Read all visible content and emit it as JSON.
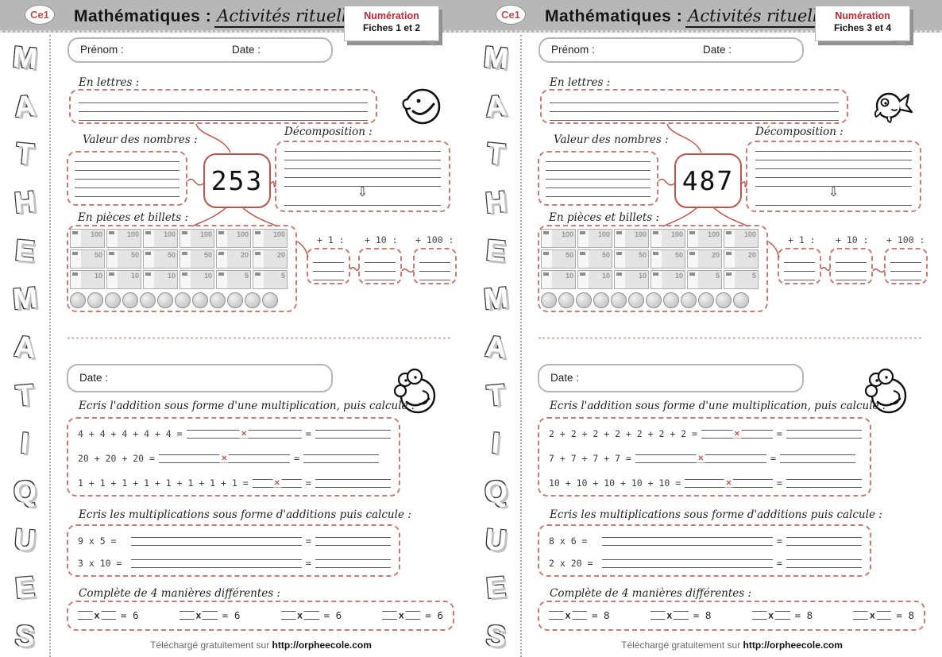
{
  "colors": {
    "band": "#b7b7b7",
    "accent_red": "#c4584e",
    "tag_red": "#c2272d"
  },
  "side_letters": [
    "M",
    "A",
    "T",
    "H",
    "E",
    "M",
    "A",
    "T",
    "I",
    "Q",
    "U",
    "E",
    "S"
  ],
  "symbols": {
    "eq": "=",
    "times": "×",
    "down_arrow": "⇩"
  },
  "money": {
    "bill_rows": [
      [
        "100",
        "100",
        "100",
        "100",
        "100",
        "100"
      ],
      [
        "50",
        "50",
        "50",
        "50",
        "20",
        "20"
      ],
      [
        "10",
        "10",
        "10",
        "10",
        "5",
        "5"
      ]
    ],
    "coin_count": 12
  },
  "footer": {
    "prefix": "Téléchargé gratuitement sur ",
    "url": "http://orpheecole.com"
  },
  "pages": [
    {
      "badge": "Ce1",
      "title_print": "Mathématiques :",
      "title_script": "Activités rituelles",
      "tag_subject": "Numération",
      "tag_fiches": "Fiches 1 et 2",
      "prenom_label": "Prénom :",
      "date_label": "Date :",
      "labels": {
        "en_lettres": "En lettres :",
        "valeur": "Valeur des nombres :",
        "decomposition": "Décomposition :",
        "pieces": "En pièces et billets :"
      },
      "number": "253",
      "plus_labels": [
        "+ 1 :",
        "+ 10 :",
        "+ 100 :"
      ],
      "date2_label": "Date :",
      "instructions": {
        "addition": "Ecris l'addition sous forme d'une multiplication, puis calcule :",
        "multiplication": "Ecris les multiplications sous forme d'additions puis calcule :",
        "complete": "Complète de 4 manières différentes :"
      },
      "addition_rows": [
        "4 + 4 + 4 + 4 + 4 =",
        "20 + 20 + 20 =",
        "1 + 1 + 1 + 1 + 1 + 1 + 1 + 1 ="
      ],
      "multiplication_rows": [
        "9 x 5 =",
        "3 x 10 ="
      ],
      "complete_x": "x",
      "complete_eq": "= 6",
      "mascot_top": "smiley"
    },
    {
      "badge": "Ce1",
      "title_print": "Mathématiques :",
      "title_script": "Activités rituelles",
      "tag_subject": "Numération",
      "tag_fiches": "Fiches 3 et 4",
      "prenom_label": "Prénom :",
      "date_label": "Date :",
      "labels": {
        "en_lettres": "En lettres :",
        "valeur": "Valeur des nombres :",
        "decomposition": "Décomposition :",
        "pieces": "En pièces et billets :"
      },
      "number": "487",
      "plus_labels": [
        "+ 1 :",
        "+ 10 :",
        "+ 100 :"
      ],
      "date2_label": "Date :",
      "instructions": {
        "addition": "Ecris l'addition sous forme d'une multiplication, puis calcule :",
        "multiplication": "Ecris les multiplications sous forme d'additions puis calcule :",
        "complete": "Complète de 4 manières différentes :"
      },
      "addition_rows": [
        "2 + 2 + 2 + 2 + 2 + 2 + 2 =",
        "7 + 7 + 7 + 7 =",
        "10 + 10 + 10 + 10 + 10 ="
      ],
      "multiplication_rows": [
        "8 x 6 =",
        "2 x 20 ="
      ],
      "complete_x": "x",
      "complete_eq": "= 8",
      "mascot_top": "fish"
    }
  ]
}
